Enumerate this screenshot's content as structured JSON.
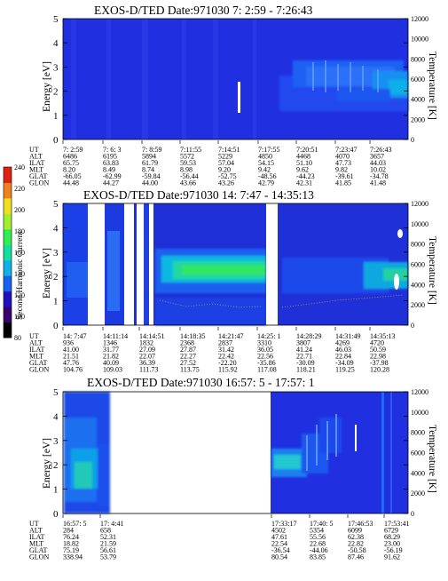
{
  "colorbar": {
    "label": "Second Harmonic Current",
    "ticks": [
      "240",
      "220",
      "200",
      "180",
      "160",
      "140",
      "120",
      "100",
      "80"
    ],
    "colors": [
      "#000000",
      "#3a0070",
      "#2010c0",
      "#1a60f0",
      "#10b0e8",
      "#10e0a0",
      "#30f050",
      "#a0f030",
      "#f0e020",
      "#f08020",
      "#e02010"
    ]
  },
  "axes": {
    "left_label": "Energy [eV]",
    "right_label": "Temperature [K]",
    "left_ticks": [
      "0",
      "1",
      "2",
      "3",
      "4",
      "5"
    ],
    "right_ticks": [
      "0",
      "2000",
      "4000",
      "6000",
      "8000",
      "10000",
      "12000"
    ]
  },
  "chart_data": [
    {
      "type": "heatmap",
      "title": "EXOS-D/TED   Date:971030   7: 2:59 - 7:26:43",
      "ylabel": "Energy [eV]",
      "ylabel_right": "Temperature [K]",
      "ylim": [
        0,
        5
      ],
      "ylim_right": [
        0,
        12000
      ],
      "row_labels": [
        "UT",
        "ALT",
        "ILAT",
        "MLT",
        "GLAT",
        "GLON"
      ],
      "columns": [
        [
          "7: 2:59",
          "6486",
          "65.75",
          "8.20",
          "-66.05",
          "44.48"
        ],
        [
          "7: 6: 3",
          "6195",
          "63.83",
          "8.49",
          "-62.99",
          "44.27"
        ],
        [
          "7: 8:59",
          "5894",
          "61.79",
          "8.74",
          "-59.84",
          "44.00"
        ],
        [
          "7:11:55",
          "5572",
          "59.53",
          "8.98",
          "-56.44",
          "43.66"
        ],
        [
          "7:14:51",
          "5229",
          "57.04",
          "9.20",
          "-52.75",
          "43.26"
        ],
        [
          "7:17:55",
          "4850",
          "54.15",
          "9.42",
          "-48.56",
          "42.79"
        ],
        [
          "7:20:51",
          "4468",
          "51.10",
          "9.62",
          "-44.23",
          "42.31"
        ],
        [
          "7:23:47",
          "4070",
          "47.73",
          "9.82",
          "-39.61",
          "41.85"
        ],
        [
          "7:26:43",
          "3657",
          "44.03",
          "10.02",
          "-34.78",
          "41.48"
        ]
      ]
    },
    {
      "type": "heatmap",
      "title": "EXOS-D/TED   Date:971030   14: 7:47 - 14:35:13",
      "ylabel": "Energy [eV]",
      "ylabel_right": "Temperature [K]",
      "ylim": [
        0,
        5
      ],
      "ylim_right": [
        0,
        12000
      ],
      "row_labels": [
        "UT",
        "ALT",
        "ILAT",
        "MLT",
        "GLAT",
        "GLON"
      ],
      "columns": [
        [
          "14: 7:47",
          "936",
          "41.00",
          "21.51",
          "47.76",
          "104.76"
        ],
        [
          "14:11:14",
          "1346",
          "31.77",
          "21.82",
          "40.09",
          "109.03"
        ],
        [
          "14:14:51",
          "1832",
          "27.09",
          "22.07",
          "36.39",
          "111.73"
        ],
        [
          "14:18:35",
          "2368",
          "27.87",
          "22.27",
          "27.52",
          "113.75"
        ],
        [
          "14:21:47",
          "2837",
          "31.42",
          "22.42",
          "-22.20",
          "115.92"
        ],
        [
          "14:25: 1",
          "3310",
          "36.05",
          "22.56",
          "-35.86",
          "117.08"
        ],
        [
          "14:28:29",
          "3807",
          "41.24",
          "22.71",
          "-30.09",
          "118.21"
        ],
        [
          "14:31:49",
          "4269",
          "46.03",
          "22.84",
          "-34.09",
          "119.25"
        ],
        [
          "14:35:13",
          "4720",
          "50.59",
          "22.98",
          "-37.98",
          "120.28"
        ]
      ]
    },
    {
      "type": "heatmap",
      "title": "EXOS-D/TED   Date:971030   16:57: 5 - 17:57: 1",
      "ylabel": "Energy [eV]",
      "ylabel_right": "Temperature [K]",
      "ylim": [
        0,
        5
      ],
      "ylim_right": [
        0,
        12000
      ],
      "row_labels": [
        "UT",
        "ALT",
        "ILAT",
        "MLT",
        "GLAT",
        "GLON"
      ],
      "columns": [
        [
          "16:57: 5",
          "284",
          "76.24",
          "18.82",
          "75.19",
          "338.94"
        ],
        [
          "17: 4:41",
          "658",
          "52.31",
          "21.59",
          "56.61",
          "53.79"
        ],
        [
          "17:33:17",
          "4502",
          "47.61",
          "22.54",
          "-36.54",
          "80.54"
        ],
        [
          "17:40: 5",
          "5354",
          "55.56",
          "22.68",
          "-44.06",
          "83.85"
        ],
        [
          "17:46:53",
          "6099",
          "62.38",
          "22.82",
          "-50.58",
          "87.46"
        ],
        [
          "17:53:41",
          "6729",
          "68.29",
          "23.00",
          "-56.19",
          "91.62"
        ]
      ]
    }
  ]
}
